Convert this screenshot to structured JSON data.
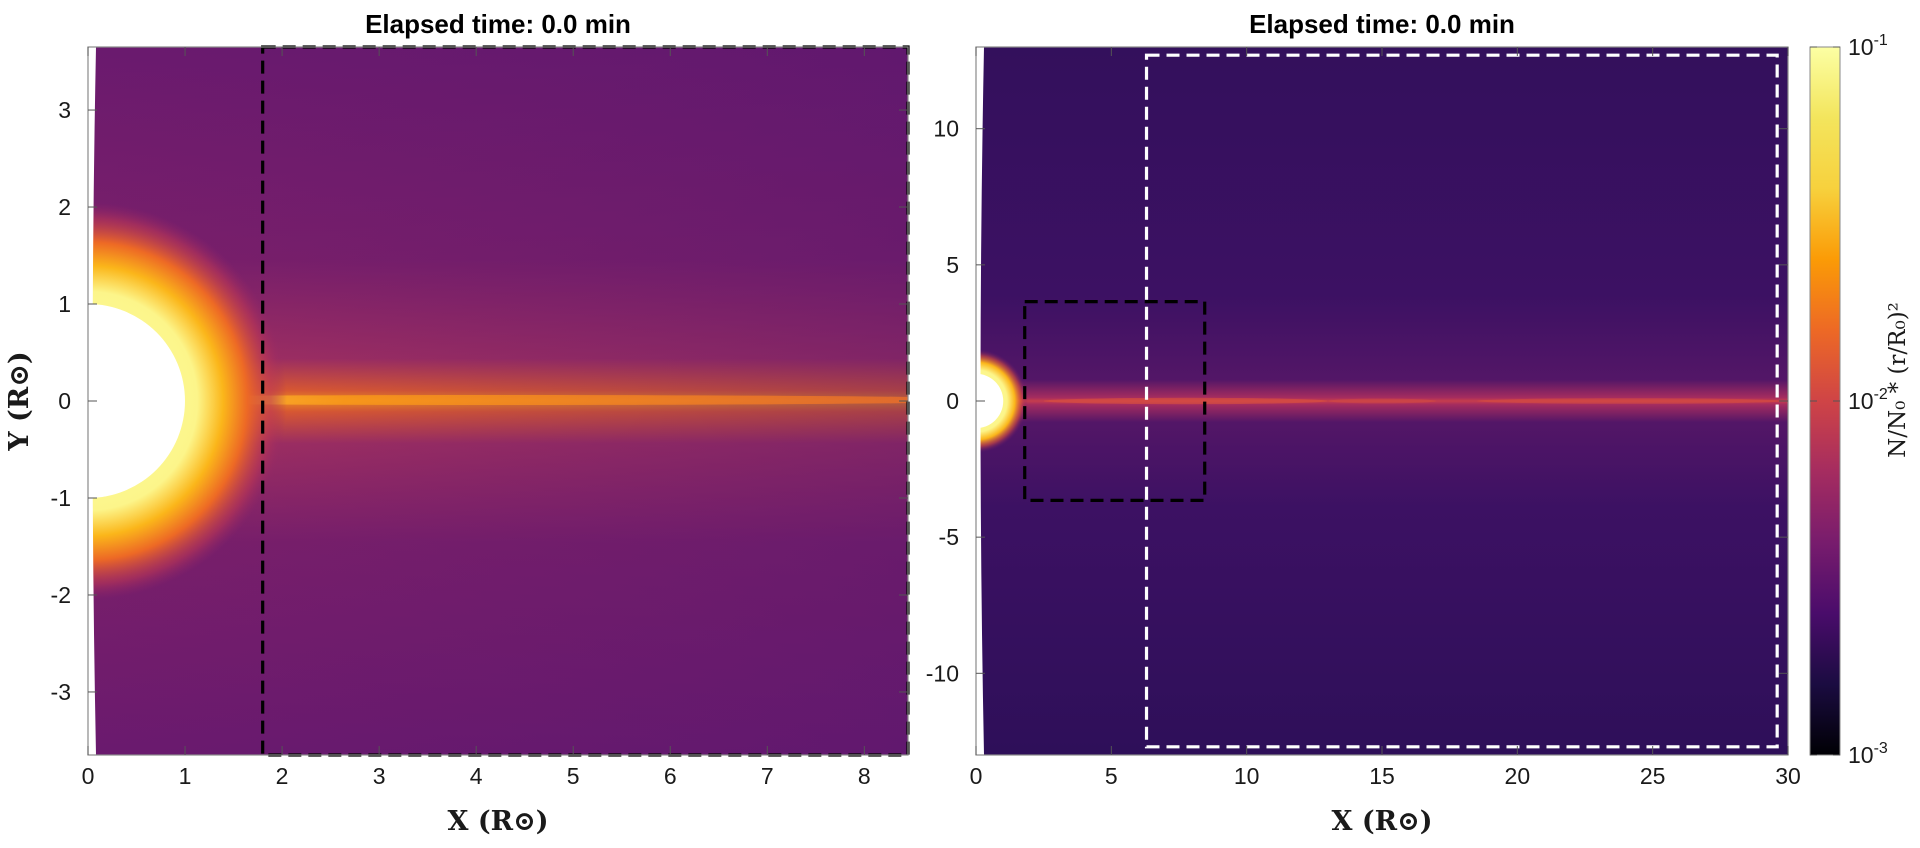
{
  "chart_data": [
    {
      "type": "heatmap",
      "title": "Elapsed time: 0.0 min",
      "xlabel": "X (R⊙)",
      "ylabel": "Y (R⊙)",
      "xlim": [
        0,
        8.45
      ],
      "ylim": [
        -3.65,
        3.65
      ],
      "xticks": [
        0,
        1,
        2,
        3,
        4,
        5,
        6,
        7,
        8
      ],
      "yticks": [
        -3,
        -2,
        -1,
        0,
        1,
        2,
        3
      ],
      "occulter_radius": 1.0,
      "overlays": [
        {
          "name": "zoom-box",
          "color": "#000000",
          "style": "dashed",
          "x": [
            1.8,
            8.45
          ],
          "y": [
            -3.65,
            3.65
          ]
        }
      ]
    },
    {
      "type": "heatmap",
      "title": "Elapsed time: 0.0 min",
      "xlabel": "X (R⊙)",
      "ylabel": "",
      "xlim": [
        0,
        30
      ],
      "ylim": [
        -13,
        13
      ],
      "xticks": [
        0,
        5,
        10,
        15,
        20,
        25,
        30
      ],
      "yticks": [
        -10,
        -5,
        0,
        5,
        10
      ],
      "occulter_radius": 1.0,
      "overlays": [
        {
          "name": "inner-box",
          "color": "#000000",
          "style": "dashed",
          "x": [
            1.8,
            8.45
          ],
          "y": [
            -3.65,
            3.65
          ]
        },
        {
          "name": "outer-box",
          "color": "#ffffff",
          "style": "dashed",
          "x": [
            6.3,
            29.6
          ],
          "y": [
            -12.7,
            12.7
          ]
        }
      ]
    }
  ],
  "colorbar": {
    "label": "N/N₀ * (r/R₀)²",
    "scale": "log",
    "range": [
      0.001,
      0.1
    ],
    "ticks": [
      {
        "value": 0.1,
        "base": "10",
        "exp": "-1"
      },
      {
        "value": 0.01,
        "base": "10",
        "exp": "-2"
      },
      {
        "value": 0.001,
        "base": "10",
        "exp": "-3"
      }
    ],
    "colormap": "inferno"
  }
}
